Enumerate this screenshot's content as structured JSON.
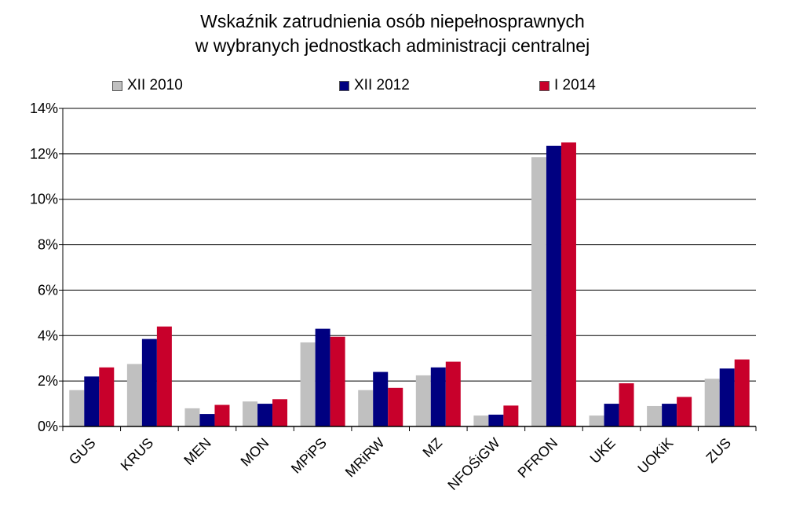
{
  "chart_data": {
    "type": "bar",
    "title": "Wskaźnik zatrudnienia osób niepełnosprawnych",
    "subtitle": "w wybranych jednostkach administracji centralnej",
    "categories": [
      "GUS",
      "KRUS",
      "MEN",
      "MON",
      "MPiPS",
      "MRiRW",
      "MZ",
      "NFOŚiGW",
      "PFRON",
      "UKE",
      "UOKiK",
      "ZUS"
    ],
    "series": [
      {
        "name": "XII 2010",
        "color": "#c0c0c0",
        "values": [
          1.6,
          2.75,
          0.8,
          1.1,
          3.7,
          1.6,
          2.25,
          0.48,
          11.85,
          0.48,
          0.9,
          2.1
        ]
      },
      {
        "name": "XII 2012",
        "color": "#000080",
        "values": [
          2.2,
          3.85,
          0.55,
          1.0,
          4.3,
          2.4,
          2.6,
          0.52,
          12.35,
          1.0,
          1.0,
          2.55
        ]
      },
      {
        "name": "I 2014",
        "color": "#c8002b",
        "values": [
          2.6,
          4.4,
          0.95,
          1.2,
          3.95,
          1.7,
          2.85,
          0.92,
          12.5,
          1.9,
          1.3,
          2.95
        ]
      }
    ],
    "ylim": [
      0,
      14
    ],
    "yticks": [
      0,
      2,
      4,
      6,
      8,
      10,
      12,
      14
    ],
    "ytick_labels": [
      "0%",
      "2%",
      "4%",
      "6%",
      "8%",
      "10%",
      "12%",
      "14%"
    ],
    "grid": true,
    "legend_position": "top"
  }
}
